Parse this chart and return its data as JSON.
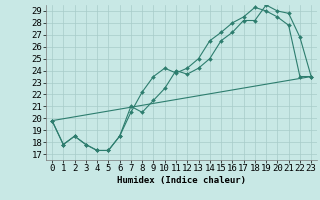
{
  "xlabel": "Humidex (Indice chaleur)",
  "line_color": "#2d7d6e",
  "background_color": "#c8e8e5",
  "grid_color": "#a8ccc9",
  "xlim": [
    -0.5,
    23.5
  ],
  "ylim": [
    16.5,
    29.5
  ],
  "xticks": [
    0,
    1,
    2,
    3,
    4,
    5,
    6,
    7,
    8,
    9,
    10,
    11,
    12,
    13,
    14,
    15,
    16,
    17,
    18,
    19,
    20,
    21,
    22,
    23
  ],
  "yticks": [
    17,
    18,
    19,
    20,
    21,
    22,
    23,
    24,
    25,
    26,
    27,
    28,
    29
  ],
  "line1_x": [
    0,
    1,
    2,
    3,
    4,
    5,
    6,
    7,
    8,
    9,
    10,
    11,
    12,
    13,
    14,
    15,
    16,
    17,
    18,
    19,
    20,
    21,
    22,
    23
  ],
  "line1_y": [
    19.8,
    17.8,
    18.5,
    17.8,
    17.3,
    17.3,
    18.5,
    21.0,
    20.5,
    21.5,
    22.5,
    24.0,
    23.7,
    24.2,
    25.0,
    26.5,
    27.2,
    28.2,
    28.2,
    29.5,
    29.0,
    28.8,
    26.8,
    23.5
  ],
  "line2_x": [
    0,
    1,
    2,
    3,
    4,
    5,
    6,
    7,
    8,
    9,
    10,
    11,
    12,
    13,
    14,
    15,
    16,
    17,
    18,
    19,
    20,
    21,
    22,
    23
  ],
  "line2_y": [
    19.8,
    17.8,
    18.5,
    17.8,
    17.3,
    17.3,
    18.5,
    20.5,
    22.2,
    23.5,
    24.2,
    23.8,
    24.2,
    25.0,
    26.5,
    27.2,
    28.0,
    28.5,
    29.3,
    29.0,
    28.5,
    27.8,
    23.5,
    23.5
  ],
  "line3_x": [
    0,
    23
  ],
  "line3_y": [
    19.8,
    23.5
  ],
  "font_size": 6.5,
  "marker": "D",
  "marker_size": 2.0,
  "linewidth": 0.8
}
